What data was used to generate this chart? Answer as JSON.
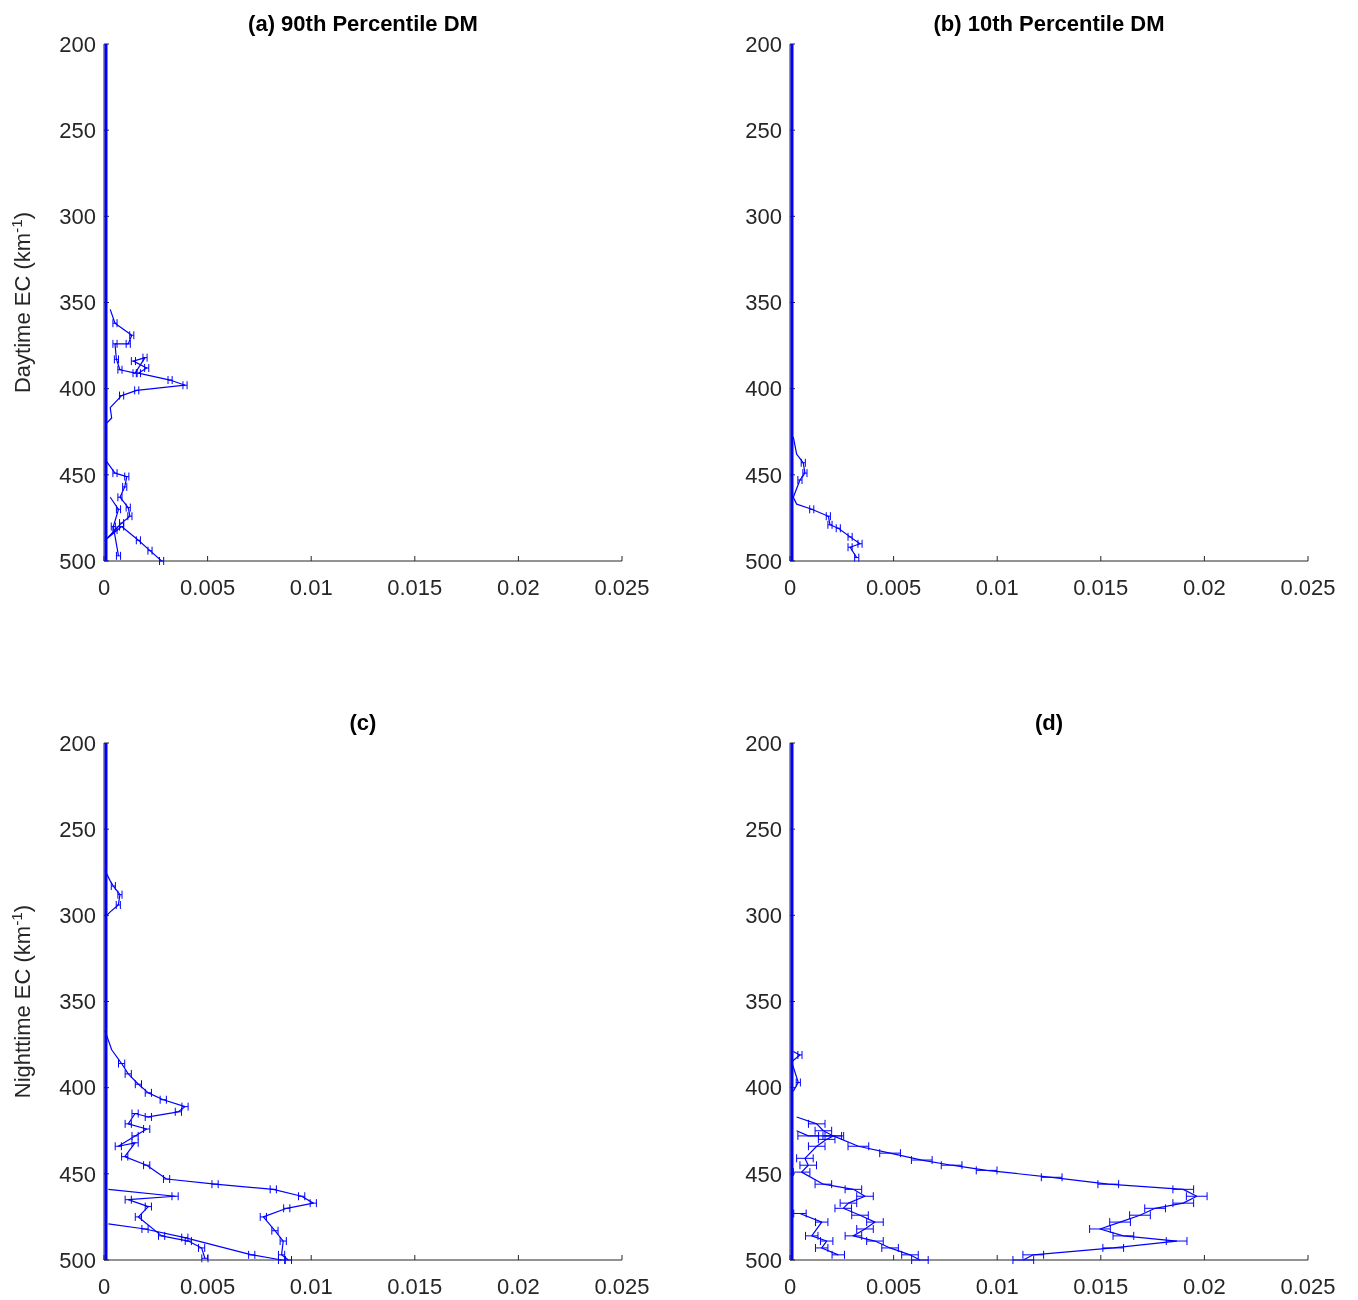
{
  "chart_data": [
    {
      "type": "line",
      "title": "(a) 90th Percentile DM",
      "ylabel": "Daytime EC (km$^{-1}$)",
      "xlim": [
        0,
        0.025
      ],
      "xticks": [
        0,
        0.005,
        0.01,
        0.015,
        0.02,
        0.025
      ],
      "ylim": [
        500,
        200
      ],
      "yticks": [
        200,
        250,
        300,
        350,
        400,
        450,
        500
      ],
      "series": [
        {
          "color": "#0000ff",
          "x": [
            0,
            0,
            0,
            0,
            0,
            0,
            0,
            0,
            0,
            0,
            0,
            0,
            0,
            0,
            0,
            0,
            0,
            0,
            0,
            0,
            0,
            0,
            0,
            0,
            0,
            0,
            0,
            0,
            0,
            0,
            0
          ],
          "values": [
            200,
            210,
            220,
            230,
            240,
            250,
            260,
            270,
            280,
            290,
            300,
            310,
            320,
            330,
            340,
            350,
            360,
            370,
            380,
            390,
            400,
            410,
            420,
            430,
            440,
            450,
            460,
            470,
            480,
            490,
            500
          ]
        },
        {
          "color": "#0000ff",
          "x": [
            0.0003,
            0.00053,
            0.00134,
            0.00117,
            0.00053,
            0.0006,
            0.00077,
            0.0015,
            0.00198,
            0.00142,
            0.00206,
            0.00166,
            0.00319,
            0.00391,
            0.00158,
            0.00085,
            0.0003,
            0.00037,
            5e-05
          ],
          "values": [
            354,
            362,
            369,
            374,
            374,
            383,
            389,
            391,
            382,
            384,
            388,
            391,
            395,
            398,
            401,
            404,
            411,
            417,
            421
          ],
          "xerrors": [
            null,
            0.0001,
            0.0001,
            0.0001,
            0.0001,
            0.0001,
            0.0001,
            0.0001,
            0.0001,
            0.0001,
            0.0001,
            0.0001,
            0.0001,
            0.0001,
            0.0001,
            0.0001,
            null,
            null,
            null
          ]
        },
        {
          "color": "#0000ff",
          "x": [
            5e-05,
            0.00053,
            0.0011,
            0.001,
            0.00077,
            0.00117,
            0.00125,
            0.00085,
            0.00053,
            5e-05,
            0.00085,
            0.00166,
            0.00222,
            0.00278
          ],
          "values": [
            441,
            449,
            451,
            457,
            463,
            469,
            474,
            478,
            482,
            488,
            480,
            488,
            494,
            500
          ],
          "xerrors": [
            null,
            0.0001,
            0.0001,
            0.0001,
            0.0001,
            0.0001,
            0.0001,
            0.0001,
            0.0001,
            null,
            0.0001,
            0.0001,
            0.0001,
            0.0001
          ]
        },
        {
          "color": "#0000ff",
          "x": [
            0.0003,
            0.0007,
            0.00045,
            0.0007
          ],
          "values": [
            463,
            470,
            480,
            497
          ],
          "xerrors": [
            null,
            0.0001,
            0.0001,
            0.0001
          ]
        }
      ]
    },
    {
      "type": "line",
      "title": "(b) 10th Percentile DM",
      "xlim": [
        0,
        0.025
      ],
      "xticks": [
        0,
        0.005,
        0.01,
        0.015,
        0.02,
        0.025
      ],
      "ylim": [
        500,
        200
      ],
      "yticks": [
        200,
        250,
        300,
        350,
        400,
        450,
        500
      ],
      "series": [
        {
          "color": "#0000ff",
          "x": [
            0,
            0,
            0,
            0,
            0,
            0,
            0,
            0,
            0,
            0,
            0,
            0,
            0,
            0,
            0,
            0,
            0,
            0,
            0,
            0,
            0,
            0,
            0,
            0,
            0,
            0,
            0,
            0,
            0,
            0,
            0
          ],
          "values": [
            200,
            210,
            220,
            230,
            240,
            250,
            260,
            270,
            280,
            290,
            300,
            310,
            320,
            330,
            340,
            350,
            360,
            370,
            380,
            390,
            400,
            410,
            420,
            430,
            440,
            450,
            460,
            470,
            480,
            490,
            500
          ]
        },
        {
          "color": "#0000ff",
          "x": [
            0.00016,
            0.00032,
            0.00064,
            0.00072,
            0.00048,
            0.00016,
            0.00032,
            0.00105,
            0.00185,
            0.00193,
            0.00233,
            0.0029,
            0.00338,
            0.0029,
            0.00322
          ],
          "values": [
            428,
            438,
            443,
            449,
            453,
            463,
            467,
            470,
            474,
            479,
            481,
            486,
            490,
            492,
            498
          ],
          "xerrors": [
            null,
            null,
            0.0001,
            0.0001,
            0.0001,
            null,
            null,
            0.0001,
            0.0001,
            0.0001,
            0.0001,
            0.0001,
            0.0001,
            0.0001,
            0.0001
          ]
        }
      ]
    },
    {
      "type": "line",
      "title": "(c)",
      "ylabel": "Nighttime EC (km$^{-1}$)",
      "xlim": [
        0,
        0.025
      ],
      "xticks": [
        0,
        0.005,
        0.01,
        0.015,
        0.02,
        0.025
      ],
      "ylim": [
        500,
        200
      ],
      "yticks": [
        200,
        250,
        300,
        350,
        400,
        450,
        500
      ],
      "series": [
        {
          "color": "#0000ff",
          "x": [
            0,
            0,
            0,
            0,
            0,
            0,
            0,
            0,
            0,
            0,
            0,
            0,
            0,
            0,
            0,
            0,
            0,
            0,
            0,
            0,
            0,
            0,
            0,
            0,
            0,
            0,
            0,
            0,
            0,
            0,
            0
          ],
          "values": [
            200,
            210,
            220,
            230,
            240,
            250,
            260,
            270,
            280,
            290,
            300,
            310,
            320,
            330,
            340,
            350,
            360,
            370,
            380,
            390,
            400,
            410,
            420,
            430,
            440,
            450,
            460,
            470,
            480,
            490,
            500
          ]
        },
        {
          "color": "#0000ff",
          "x": [
            5e-05,
            0.0003,
            0.00045,
            0.00077,
            0.00069,
            0.0003,
            5e-05
          ],
          "values": [
            274,
            280,
            283,
            288,
            294,
            298,
            301
          ],
          "xerrors": [
            null,
            null,
            0.0001,
            0.0001,
            0.0001,
            null,
            null
          ]
        },
        {
          "color": "#0000ff",
          "x": [
            5e-05,
            0.00037,
            0.00085,
            0.00117,
            0.00166,
            0.00214,
            0.00286,
            0.00391,
            0.00359,
            0.00214,
            0.0015,
            0.00117,
            0.00206,
            0.0015,
            0.00069,
            0.0015,
            0.001,
            0.00206,
            0.00302,
            0.00536,
            0.00817,
            0.00954,
            0.0101,
            0.00882,
            0.00769,
            0.00825,
            0.00865,
            0.00857,
            0.0089
          ],
          "values": [
            367,
            378,
            386,
            392,
            398,
            403,
            407,
            411,
            414,
            417,
            415,
            421,
            424,
            428,
            434,
            432,
            440,
            445,
            453,
            456,
            459,
            463,
            467,
            470,
            475,
            483,
            489,
            497,
            500
          ],
          "xerrors": [
            null,
            null,
            0.00015,
            0.00015,
            0.00015,
            0.00015,
            0.00015,
            0.00015,
            0.00015,
            0.00015,
            0.00015,
            0.00015,
            0.00015,
            0.00015,
            0.00015,
            0.00015,
            0.00015,
            0.00015,
            0.00015,
            0.00015,
            0.00015,
            0.00015,
            0.00015,
            0.00015,
            0.00015,
            0.00015,
            0.00015,
            0.00015,
            0.00015
          ]
        },
        {
          "color": "#0000ff",
          "x": [
            0.00021,
            0.00343,
            0.00117,
            0.00214,
            0.00166,
            0.00278,
            0.00407,
            0.00471,
            0.00487
          ],
          "values": [
            459,
            463,
            465,
            469,
            475,
            486,
            489,
            493,
            499
          ],
          "xerrors": [
            null,
            0.00015,
            0.00015,
            0.00015,
            0.00015,
            0.00015,
            0.00015,
            0.00015,
            0.00015
          ]
        },
        {
          "color": "#0000ff",
          "x": [
            0.00021,
            0.00198,
            0.0039,
            0.00713,
            0.00857
          ],
          "values": [
            479,
            482,
            487,
            497,
            500
          ],
          "xerrors": [
            null,
            0.00015,
            0.00015,
            0.00015,
            0.00015
          ]
        }
      ]
    },
    {
      "type": "line",
      "title": "(d)",
      "xlim": [
        0,
        0.025
      ],
      "xticks": [
        0,
        0.005,
        0.01,
        0.015,
        0.02,
        0.025
      ],
      "ylim": [
        500,
        200
      ],
      "yticks": [
        200,
        250,
        300,
        350,
        400,
        450,
        500
      ],
      "series": [
        {
          "color": "#0000ff",
          "x": [
            0,
            0,
            0,
            0,
            0,
            0,
            0,
            0,
            0,
            0,
            0,
            0,
            0,
            0,
            0,
            0,
            0,
            0,
            0,
            0,
            0,
            0,
            0,
            0,
            0,
            0,
            0,
            0,
            0,
            0,
            0
          ],
          "values": [
            200,
            210,
            220,
            230,
            240,
            250,
            260,
            270,
            280,
            290,
            300,
            310,
            320,
            330,
            340,
            350,
            360,
            370,
            380,
            390,
            400,
            410,
            420,
            430,
            440,
            450,
            460,
            470,
            480,
            490,
            500
          ]
        },
        {
          "color": "#0000ff",
          "x": [
            0.00016,
            0.00048,
            8e-05,
            0.0004,
            0.00016
          ],
          "values": [
            379,
            381,
            385,
            397,
            402
          ],
          "xerrors": [
            null,
            0.0001,
            null,
            0.0001,
            null
          ]
        },
        {
          "color": "#0000ff",
          "x": [
            0.00032,
            0.00088,
            0.00209,
            0.0033,
            0.00483,
            0.00636,
            0.0078,
            0.00949,
            0.01263,
            0.01536,
            0.01898,
            0.01963,
            0.01898,
            0.01762,
            0.01689,
            0.01593,
            0.01496,
            0.01609,
            0.01866,
            0.0156,
            0.01174,
            0.01126
          ],
          "values": [
            425,
            428,
            428,
            434,
            438,
            442,
            445,
            448,
            452,
            456,
            459,
            463,
            467,
            470,
            474,
            478,
            482,
            486,
            489,
            493,
            497,
            500
          ],
          "xerrors": [
            null,
            0.0005,
            0.0005,
            0.0005,
            0.0005,
            0.0005,
            0.0005,
            0.0005,
            0.0005,
            0.0005,
            0.0005,
            0.0005,
            0.0005,
            0.0005,
            0.0005,
            0.0005,
            0.0005,
            0.0005,
            0.0005,
            0.0005,
            0.0005,
            0.0005
          ]
        },
        {
          "color": "#0000ff",
          "x": [
            0.00032,
            0.00129,
            0.00161,
            0.00209,
            0.00177,
            0.00129,
            0.00072,
            0.00088,
            0.00056,
            0.00161,
            0.00306,
            0.00362,
            0.00282,
            0.00257,
            0.00338,
            0.0041,
            0.00362,
            0.00306,
            0.0041,
            0.00483,
            0.00579,
            0.00627
          ],
          "values": [
            417,
            421,
            425,
            428,
            430,
            434,
            441,
            445,
            449,
            456,
            459,
            463,
            467,
            470,
            474,
            478,
            482,
            486,
            489,
            493,
            497,
            500
          ],
          "xerrors": [
            null,
            0.0004,
            0.0004,
            0.0004,
            0.0004,
            0.0004,
            0.0004,
            0.0004,
            0.0004,
            0.0004,
            0.0004,
            0.0004,
            0.0004,
            0.0004,
            0.0004,
            0.0004,
            0.0004,
            0.0004,
            0.0004,
            0.0004,
            0.0004,
            0.0004
          ]
        },
        {
          "color": "#0000ff",
          "x": [
            0.00048,
            0.00153,
            0.00105,
            0.00177,
            0.00153,
            0.00233
          ],
          "values": [
            473,
            478,
            486,
            489,
            493,
            497
          ],
          "xerrors": [
            0.0003,
            0.0003,
            0.0003,
            0.0003,
            0.0003,
            0.0003
          ]
        }
      ]
    }
  ]
}
